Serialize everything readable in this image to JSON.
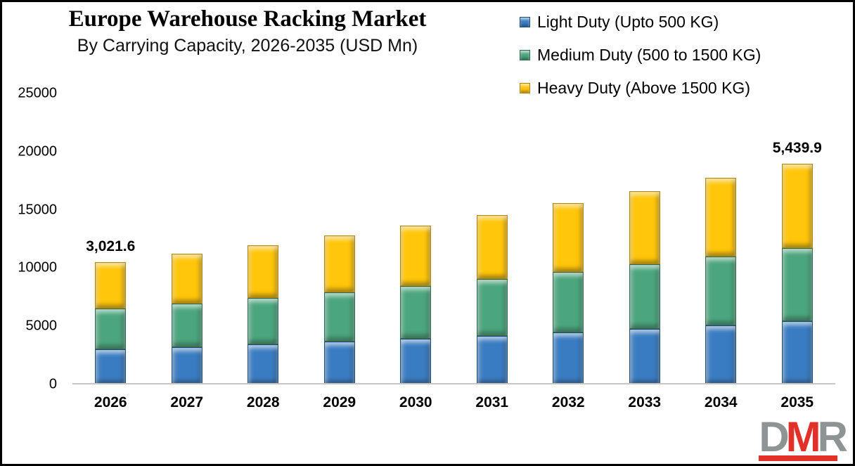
{
  "title": "Europe Warehouse Racking Market",
  "subtitle": "By Carrying Capacity, 2026-2035 (USD Mn)",
  "chart_data": {
    "type": "bar",
    "stacked": true,
    "title": "Europe Warehouse Racking Market",
    "subtitle": "By Carrying Capacity, 2026-2035 (USD Mn)",
    "unit": "USD Mn",
    "categories": [
      "2026",
      "2027",
      "2028",
      "2029",
      "2030",
      "2031",
      "2032",
      "2033",
      "2034",
      "2035"
    ],
    "series": [
      {
        "name": "Light Duty (Upto 500 KG)",
        "color": "#3A7CC1",
        "edge": "#1F4E79",
        "values": [
          3021.6,
          3225.6,
          3443.3,
          3675.7,
          3923.8,
          4188.7,
          4471.4,
          4773.2,
          5095.4,
          5439.9
        ]
      },
      {
        "name": "Medium Duty (500 to 1500 KG)",
        "color": "#4BA57D",
        "edge": "#2E6B4F",
        "values": [
          3500.0,
          3736.3,
          3988.4,
          4257.6,
          4545.0,
          4851.8,
          5179.3,
          5528.9,
          5902.1,
          6300.5
        ]
      },
      {
        "name": "Heavy Duty (Above 1500 KG)",
        "color": "#FFC60A",
        "edge": "#B38600",
        "values": [
          4000.0,
          4270.0,
          4558.2,
          4865.9,
          5194.3,
          5544.9,
          5919.2,
          6318.7,
          6745.2,
          7200.5
        ]
      }
    ],
    "ylim": [
      0,
      25000
    ],
    "yticks": [
      0,
      5000,
      10000,
      15000,
      20000,
      25000
    ],
    "grid": false,
    "legend_position": "top-right",
    "callouts": [
      {
        "category": "2026",
        "text": "3,021.6"
      },
      {
        "category": "2035",
        "text": "5,439.9"
      }
    ]
  },
  "logo": {
    "letters": [
      {
        "ch": "D",
        "color": "#8E9394"
      },
      {
        "ch": "M",
        "color": "#E23128"
      },
      {
        "ch": "R",
        "color": "#8E9394"
      }
    ],
    "bar_color": "#E23128"
  }
}
